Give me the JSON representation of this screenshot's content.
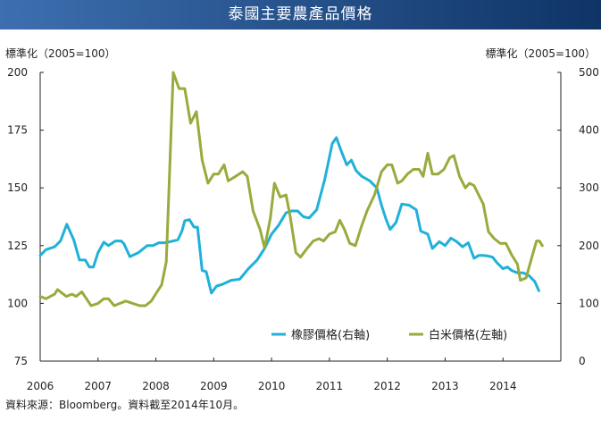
{
  "title": "泰國主要農產品價格",
  "source_note": "資料來源：Bloomberg。資料截至2014年10月。",
  "colors": {
    "title_bar_left": "#3d6fb0",
    "title_bar_right": "#0f3466",
    "rubber": "#1fb1d9",
    "rice": "#9aaa3c",
    "axis": "#231f20"
  },
  "chart_data": {
    "type": "line",
    "title": "泰國主要農產品價格",
    "y_left": {
      "label": "標準化（2005=100）",
      "range": [
        75,
        200
      ],
      "ticks": [
        75,
        100,
        125,
        150,
        175,
        200
      ]
    },
    "y_right": {
      "label": "標準化（2005=100）",
      "range": [
        0,
        500
      ],
      "ticks": [
        0,
        100,
        200,
        300,
        400,
        500
      ]
    },
    "x_axis": {
      "range": [
        2006,
        2015
      ],
      "ticks": [
        "2006",
        "2007",
        "2008",
        "2009",
        "2010",
        "2011",
        "2012",
        "2013",
        "2014"
      ]
    },
    "grid": false,
    "legend": {
      "position": "bottom-right"
    },
    "series": [
      {
        "name": "橡膠價格(右軸)",
        "axis": "right",
        "points": [
          [
            2006.0,
            183
          ],
          [
            2006.1,
            193
          ],
          [
            2006.25,
            198
          ],
          [
            2006.35,
            208
          ],
          [
            2006.46,
            237
          ],
          [
            2006.58,
            210
          ],
          [
            2006.68,
            175
          ],
          [
            2006.78,
            175
          ],
          [
            2006.85,
            163
          ],
          [
            2006.92,
            163
          ],
          [
            2007.0,
            188
          ],
          [
            2007.1,
            206
          ],
          [
            2007.18,
            200
          ],
          [
            2007.3,
            208
          ],
          [
            2007.4,
            208
          ],
          [
            2007.45,
            203
          ],
          [
            2007.55,
            181
          ],
          [
            2007.7,
            188
          ],
          [
            2007.85,
            200
          ],
          [
            2007.95,
            200
          ],
          [
            2008.05,
            205
          ],
          [
            2008.15,
            205
          ],
          [
            2008.25,
            207
          ],
          [
            2008.38,
            210
          ],
          [
            2008.45,
            225
          ],
          [
            2008.5,
            243
          ],
          [
            2008.58,
            245
          ],
          [
            2008.66,
            232
          ],
          [
            2008.72,
            232
          ],
          [
            2008.8,
            157
          ],
          [
            2008.87,
            155
          ],
          [
            2008.96,
            118
          ],
          [
            2009.05,
            130
          ],
          [
            2009.15,
            133
          ],
          [
            2009.3,
            140
          ],
          [
            2009.45,
            142
          ],
          [
            2009.6,
            160
          ],
          [
            2009.75,
            175
          ],
          [
            2009.88,
            195
          ],
          [
            2010.0,
            220
          ],
          [
            2010.12,
            235
          ],
          [
            2010.25,
            257
          ],
          [
            2010.35,
            260
          ],
          [
            2010.45,
            260
          ],
          [
            2010.55,
            250
          ],
          [
            2010.65,
            248
          ],
          [
            2010.78,
            262
          ],
          [
            2010.92,
            315
          ],
          [
            2011.05,
            377
          ],
          [
            2011.12,
            387
          ],
          [
            2011.2,
            365
          ],
          [
            2011.3,
            340
          ],
          [
            2011.38,
            348
          ],
          [
            2011.46,
            330
          ],
          [
            2011.56,
            320
          ],
          [
            2011.7,
            312
          ],
          [
            2011.82,
            300
          ],
          [
            2011.9,
            270
          ],
          [
            2011.98,
            245
          ],
          [
            2012.05,
            228
          ],
          [
            2012.15,
            240
          ],
          [
            2012.25,
            272
          ],
          [
            2012.38,
            270
          ],
          [
            2012.5,
            262
          ],
          [
            2012.58,
            225
          ],
          [
            2012.7,
            220
          ],
          [
            2012.78,
            195
          ],
          [
            2012.9,
            207
          ],
          [
            2013.0,
            200
          ],
          [
            2013.1,
            213
          ],
          [
            2013.2,
            207
          ],
          [
            2013.3,
            198
          ],
          [
            2013.4,
            205
          ],
          [
            2013.5,
            178
          ],
          [
            2013.58,
            183
          ],
          [
            2013.66,
            183
          ],
          [
            2013.74,
            182
          ],
          [
            2013.82,
            180
          ],
          [
            2013.9,
            170
          ],
          [
            2014.0,
            160
          ],
          [
            2014.08,
            163
          ],
          [
            2014.15,
            157
          ],
          [
            2014.25,
            153
          ],
          [
            2014.35,
            153
          ],
          [
            2014.45,
            148
          ],
          [
            2014.55,
            138
          ],
          [
            2014.62,
            122
          ]
        ]
      },
      {
        "name": "白米價格(左軸)",
        "axis": "left",
        "points": [
          [
            2006.0,
            103
          ],
          [
            2006.1,
            102
          ],
          [
            2006.25,
            104
          ],
          [
            2006.3,
            106
          ],
          [
            2006.45,
            103
          ],
          [
            2006.55,
            104
          ],
          [
            2006.62,
            103
          ],
          [
            2006.72,
            105
          ],
          [
            2006.8,
            102
          ],
          [
            2006.88,
            99
          ],
          [
            2007.0,
            100
          ],
          [
            2007.1,
            102
          ],
          [
            2007.18,
            102
          ],
          [
            2007.28,
            99
          ],
          [
            2007.38,
            100
          ],
          [
            2007.48,
            101
          ],
          [
            2007.6,
            100
          ],
          [
            2007.72,
            99
          ],
          [
            2007.82,
            99
          ],
          [
            2007.92,
            101
          ],
          [
            2008.02,
            105
          ],
          [
            2008.1,
            108
          ],
          [
            2008.18,
            118
          ],
          [
            2008.22,
            145
          ],
          [
            2008.3,
            200
          ],
          [
            2008.4,
            193
          ],
          [
            2008.5,
            193
          ],
          [
            2008.6,
            178
          ],
          [
            2008.7,
            183
          ],
          [
            2008.8,
            162
          ],
          [
            2008.9,
            152
          ],
          [
            2009.0,
            156
          ],
          [
            2009.08,
            156
          ],
          [
            2009.18,
            160
          ],
          [
            2009.25,
            153
          ],
          [
            2009.38,
            155
          ],
          [
            2009.5,
            157
          ],
          [
            2009.58,
            155
          ],
          [
            2009.68,
            140
          ],
          [
            2009.8,
            132
          ],
          [
            2009.88,
            124
          ],
          [
            2009.98,
            137
          ],
          [
            2010.05,
            152
          ],
          [
            2010.15,
            146
          ],
          [
            2010.25,
            147
          ],
          [
            2010.32,
            138
          ],
          [
            2010.42,
            122
          ],
          [
            2010.5,
            120
          ],
          [
            2010.62,
            124
          ],
          [
            2010.72,
            127
          ],
          [
            2010.82,
            128
          ],
          [
            2010.9,
            127
          ],
          [
            2011.0,
            130
          ],
          [
            2011.1,
            131
          ],
          [
            2011.18,
            136
          ],
          [
            2011.26,
            132
          ],
          [
            2011.35,
            126
          ],
          [
            2011.45,
            125
          ],
          [
            2011.55,
            133
          ],
          [
            2011.65,
            140
          ],
          [
            2011.78,
            147
          ],
          [
            2011.9,
            157
          ],
          [
            2012.0,
            160
          ],
          [
            2012.08,
            160
          ],
          [
            2012.18,
            152
          ],
          [
            2012.25,
            153
          ],
          [
            2012.35,
            156
          ],
          [
            2012.45,
            158
          ],
          [
            2012.55,
            158
          ],
          [
            2012.62,
            155
          ],
          [
            2012.7,
            165
          ],
          [
            2012.78,
            156
          ],
          [
            2012.88,
            156
          ],
          [
            2012.98,
            158
          ],
          [
            2013.08,
            163
          ],
          [
            2013.15,
            164
          ],
          [
            2013.25,
            155
          ],
          [
            2013.35,
            150
          ],
          [
            2013.42,
            152
          ],
          [
            2013.5,
            151
          ],
          [
            2013.58,
            147
          ],
          [
            2013.66,
            143
          ],
          [
            2013.75,
            131
          ],
          [
            2013.85,
            128
          ],
          [
            2013.95,
            126
          ],
          [
            2014.05,
            126
          ],
          [
            2014.15,
            121
          ],
          [
            2014.25,
            117
          ],
          [
            2014.3,
            110
          ],
          [
            2014.4,
            111
          ],
          [
            2014.5,
            120
          ],
          [
            2014.58,
            127
          ],
          [
            2014.63,
            127
          ],
          [
            2014.68,
            125
          ]
        ]
      }
    ]
  }
}
